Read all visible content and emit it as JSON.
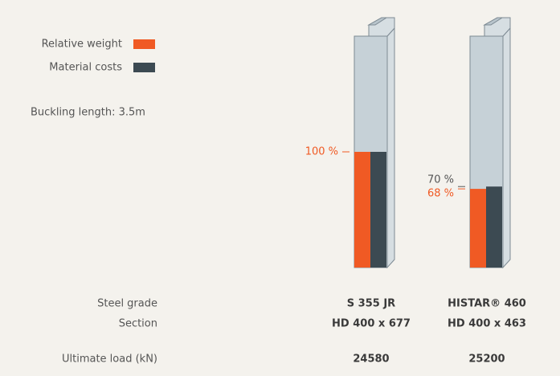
{
  "chart_data": {
    "type": "bar",
    "categories": [
      "S 355 JR",
      "HISTAR® 460"
    ],
    "series": [
      {
        "name": "Relative weight",
        "color": "#f05a24",
        "values": [
          100,
          68
        ],
        "value_labels": [
          "100 %",
          "68 %"
        ]
      },
      {
        "name": "Material costs",
        "color": "#3c4a52",
        "values": [
          100,
          70
        ],
        "value_labels": [
          null,
          "70 %"
        ]
      }
    ],
    "ylim": [
      0,
      200
    ],
    "note": "Buckling length: 3.5m"
  },
  "table": {
    "category_label": "Steel grade",
    "rows": [
      {
        "label": "Section",
        "values": [
          "HD 400 x 677",
          "HD 400 x 463"
        ]
      },
      {
        "label": "Ultimate load (kN)",
        "values": [
          24580,
          25200
        ]
      }
    ]
  }
}
